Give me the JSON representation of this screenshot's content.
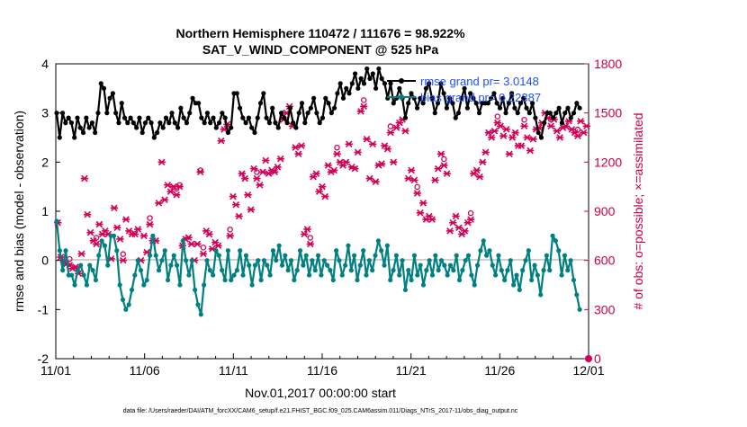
{
  "chart_data": {
    "type": "line",
    "title_line1": "Northern Hemisphere 110472 / 111676 = 98.922%",
    "title_line2": "SAT_V_WIND_COMPONENT @ 525 hPa",
    "xlabel": "Nov.01,2017 00:00:00 start",
    "ylabel_left": "rmse and bias (model - observation)",
    "ylabel_right": "# of obs: o=possible; ×=assimilated",
    "footer": "data file: /Users/raeder/DAI/ATM_forcXX/CAM6_setup/f.e21.FHIST_BGC.f09_025.CAM6assim.011/Diags_NTrS_2017-11/obs_diag_output.nc",
    "x_ticks": [
      "11/01",
      "11/06",
      "11/11",
      "11/16",
      "11/21",
      "11/26",
      "12/01"
    ],
    "x_range_days": [
      0,
      30
    ],
    "ylim_left": [
      -2,
      4
    ],
    "y_ticks_left": [
      "-2",
      "-1",
      "0",
      "1",
      "2",
      "3",
      "4"
    ],
    "ylim_right": [
      0,
      1800
    ],
    "y_ticks_right": [
      "0",
      "300",
      "600",
      "900",
      "1200",
      "1500",
      "1800"
    ],
    "legend": [
      {
        "name": "rmse grand pr= 3.0148",
        "color": "#000000"
      },
      {
        "name": "bias grand pr= 0.22387",
        "color": "#008080"
      }
    ],
    "series": [
      {
        "name": "rmse",
        "color": "#000000",
        "axis": "left",
        "values": [
          3.0,
          2.5,
          3.0,
          2.8,
          2.9,
          2.8,
          2.5,
          2.9,
          2.7,
          2.6,
          2.9,
          2.7,
          2.8,
          2.6,
          3.0,
          3.6,
          3.5,
          3.0,
          3.3,
          3.4,
          3.0,
          2.8,
          3.2,
          2.9,
          2.8,
          2.9,
          2.8,
          2.7,
          2.9,
          2.6,
          2.8,
          2.9,
          2.8,
          2.5,
          2.6,
          2.8,
          2.7,
          2.9,
          2.8,
          3.0,
          2.8,
          2.7,
          3.1,
          2.9,
          2.8,
          3.0,
          3.3,
          3.2,
          3.2,
          2.9,
          2.8,
          3.0,
          2.8,
          2.9,
          2.7,
          2.8,
          3.0,
          2.9,
          2.6,
          2.7,
          3.4,
          3.4,
          3.1,
          2.9,
          2.8,
          2.9,
          2.7,
          2.6,
          2.9,
          3.2,
          3.4,
          2.9,
          2.8,
          3.1,
          2.8,
          2.7,
          3.0,
          2.9,
          2.8,
          3.1,
          2.8,
          2.7,
          3.0,
          3.2,
          2.8,
          3.0,
          3.1,
          3.3,
          3.0,
          2.8,
          2.9,
          3.3,
          3.2,
          3.0,
          3.1,
          3.4,
          3.6,
          3.3,
          3.5,
          3.4,
          3.6,
          3.8,
          3.5,
          3.7,
          3.6,
          3.9,
          3.7,
          3.8,
          3.5,
          3.9,
          3.7,
          3.6,
          3.3,
          3.6,
          3.2,
          3.3,
          3.5,
          3.3,
          2.9,
          3.2,
          3.4,
          3.3,
          3.1,
          3.3,
          3.2,
          3.5,
          3.6,
          3.3,
          3.0,
          3.2,
          3.6,
          3.4,
          3.1,
          3.3,
          3.2,
          2.9,
          3.0,
          3.3,
          3.5,
          3.1,
          3.4,
          3.3,
          3.2,
          3.0,
          3.2,
          3.2,
          3.2,
          3.3,
          3.4,
          3.2,
          3.1,
          3.3,
          3.0,
          3.2,
          3.4,
          3.1,
          3.0,
          3.2,
          3.3,
          3.1,
          3.0,
          3.2,
          2.9,
          2.6,
          2.5,
          2.8,
          3.0,
          3.0,
          2.9,
          3.0,
          3.1,
          2.8,
          3.0,
          3.1,
          2.9,
          3.0,
          3.2,
          3.1
        ]
      },
      {
        "name": "bias",
        "color": "#008080",
        "axis": "left",
        "values": [
          0.8,
          0.2,
          -0.2,
          0.2,
          -0.3,
          -0.3,
          -0.5,
          -0.2,
          -0.1,
          -0.3,
          -0.5,
          -0.1,
          -0.2,
          -0.4,
          0.1,
          0.4,
          0.3,
          -0.1,
          0.5,
          0.5,
          0.2,
          -0.5,
          -0.8,
          -1.0,
          -0.9,
          -0.6,
          -0.3,
          0.0,
          -0.2,
          -0.5,
          -0.4,
          0.1,
          0.5,
          0.1,
          -0.2,
          0.0,
          0.2,
          -0.4,
          -0.1,
          0.1,
          -0.1,
          -0.5,
          0.4,
          0.0,
          -0.3,
          0.0,
          -0.6,
          -0.9,
          -1.1,
          -0.5,
          0.0,
          -0.2,
          -0.3,
          0.2,
          0.1,
          -0.2,
          -0.4,
          0.2,
          -0.4,
          -0.3,
          -0.2,
          0.2,
          -0.3,
          0.1,
          -0.1,
          -0.5,
          -0.1,
          0.0,
          -0.4,
          0.0,
          -0.1,
          -0.3,
          0.2,
          0.0,
          0.3,
          -0.1,
          0.1,
          -0.2,
          0.0,
          -0.4,
          -0.2,
          0.2,
          -0.1,
          0.1,
          -0.3,
          0.0,
          -0.2,
          0.1,
          -0.3,
          0.0,
          -0.1,
          -0.2,
          -0.4,
          0.2,
          0.0,
          -0.3,
          -0.1,
          0.3,
          -0.2,
          0.1,
          -0.4,
          -0.1,
          0.2,
          -0.3,
          0.0,
          -0.2,
          0.1,
          0.4,
          0.2,
          -0.1,
          0.3,
          -0.4,
          -0.2,
          0.1,
          -0.3,
          0.0,
          -0.6,
          -0.2,
          -0.4,
          0.1,
          -0.3,
          -0.1,
          -0.5,
          -0.2,
          0.0,
          -0.3,
          0.1,
          -0.2,
          0.0,
          -0.1,
          -0.3,
          -0.1,
          -0.2,
          0.1,
          -0.4,
          -0.2,
          0.0,
          0.1,
          -0.3,
          -0.5,
          -0.1,
          0.2,
          0.4,
          0.1,
          0.2,
          -0.1,
          -0.3,
          0.1,
          -0.2,
          -0.4,
          -0.2,
          0.0,
          -0.5,
          -0.3,
          -0.6,
          -0.2,
          0.0,
          0.2,
          -0.4,
          -0.1,
          -0.3,
          -0.7,
          -0.2,
          0.1,
          -0.2,
          0.5,
          0.4,
          0.2,
          -0.3,
          0.1,
          -0.2,
          0.0,
          -0.4,
          -0.7,
          -1.0
        ]
      }
    ],
    "obs_assimilated": [
      830,
      620,
      590,
      580,
      570,
      550,
      560,
      520,
      640,
      1100,
      880,
      770,
      720,
      700,
      820,
      760,
      780,
      760,
      610,
      920,
      800,
      730,
      600,
      850,
      780,
      760,
      760,
      790,
      600,
      750,
      650,
      820,
      720,
      720,
      950,
      1200,
      970,
      1060,
      1020,
      1050,
      1000,
      1050,
      690,
      730,
      740,
      700,
      600,
      700,
      1140,
      640,
      780,
      760,
      670,
      710,
      690,
      1330,
      1400,
      1430,
      750,
      990,
      940,
      870,
      1130,
      1100,
      1000,
      910,
      1160,
      1100,
      1060,
      1140,
      1210,
      1130,
      1150,
      1140,
      1170,
      1220,
      1460,
      1500,
      1540,
      1420,
      1290,
      1250,
      1300,
      760,
      790,
      700,
      1110,
      1130,
      1020,
      1050,
      990,
      1180,
      1140,
      1150,
      1250,
      1200,
      1180,
      1200,
      1310,
      1170,
      1160,
      1260,
      1510,
      1540,
      1340,
      1100,
      1310,
      1080,
      1180,
      1190,
      1300,
      1280,
      1380,
      1200,
      1410,
      1440,
      1460,
      1390,
      1100,
      1150,
      1090,
      1010,
      890,
      950,
      850,
      870,
      850,
      1090,
      1160,
      1250,
      1180,
      1130,
      780,
      830,
      870,
      800,
      760,
      780,
      830,
      850,
      1130,
      1150,
      1110,
      1200,
      1260,
      1380,
      1350,
      1390,
      1440,
      1420,
      1360,
      1400,
      1250,
      1350,
      1380,
      1300,
      1300,
      1420,
      1350,
      1270,
      1340,
      1400,
      1410,
      1440,
      1500,
      1470,
      1420,
      1460,
      1390,
      1350,
      1410,
      1420,
      1450,
      1400,
      1380,
      1360,
      1450,
      1380,
      1420
    ],
    "obs_possible": [
      830,
      620,
      590,
      580,
      570,
      550,
      560,
      520,
      640,
      1100,
      880,
      770,
      720,
      700,
      820,
      760,
      780,
      760,
      610,
      920,
      800,
      730,
      600,
      850,
      780,
      760,
      760,
      790,
      600,
      750,
      650,
      820,
      720,
      720,
      950,
      1200,
      970,
      1060,
      1020,
      1050,
      1000,
      1060,
      690,
      730,
      740,
      700,
      600,
      700,
      1150,
      640,
      780,
      760,
      670,
      710,
      690,
      1330,
      1400,
      1430,
      750,
      990,
      940,
      870,
      1130,
      1100,
      1000,
      910,
      1160,
      1100,
      1060,
      1140,
      1210,
      1130,
      1150,
      1140,
      1170,
      1220,
      1460,
      1500,
      1540,
      1420,
      1290,
      1250,
      1300,
      760,
      790,
      700,
      1110,
      1130,
      1020,
      1050,
      990,
      1180,
      1140,
      1150,
      1250,
      1200,
      1180,
      1200,
      1310,
      1170,
      1160,
      1260,
      1510,
      1540,
      1340,
      1100,
      1310,
      1080,
      1180,
      1190,
      1300,
      1280,
      1380,
      1200,
      1410,
      1440,
      1460,
      1390,
      1100,
      1150,
      1090,
      1010,
      890,
      950,
      850,
      870,
      850,
      1090,
      1160,
      1250,
      1180,
      1130,
      780,
      830,
      870,
      800,
      760,
      780,
      830,
      850,
      1130,
      1150,
      1110,
      1200,
      1260,
      1380,
      1350,
      1390,
      1440,
      1420,
      1360,
      1400,
      1250,
      1350,
      1380,
      1300,
      1300,
      1420,
      1350,
      1270,
      1340,
      1400,
      1410,
      1440,
      1500,
      1470,
      1420,
      1460,
      1390,
      1350,
      1410,
      1420,
      1450,
      1400,
      1380,
      1360,
      1450,
      1380,
      1420
    ]
  }
}
